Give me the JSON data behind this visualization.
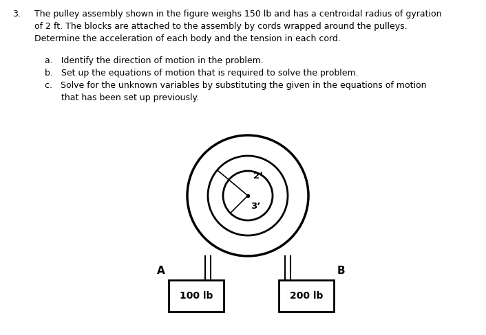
{
  "title_number": "3.",
  "title_text_line1": "The pulley assembly shown in the figure weighs 150 lb and has a centroidal radius of gyration",
  "title_text_line2": "of 2 ft. The blocks are attached to the assembly by cords wrapped around the pulleys.",
  "title_text_line3": "Determine the acceleration of each body and the tension in each cord.",
  "item_a": "a.   Identify the direction of motion in the problem.",
  "item_b": "b.   Set up the equations of motion that is required to solve the problem.",
  "item_c1": "c.   Solve for the unknown variables by substituting the given in the equations of motion",
  "item_c2": "      that has been set up previously.",
  "label_A": "A",
  "label_B": "B",
  "label_2ft": "2’",
  "label_3ft": "3’",
  "label_100lb": "100 lb",
  "label_200lb": "200 lb",
  "text_color": "#000000",
  "bg_color": "#ffffff",
  "line_color": "#000000",
  "line_width": 2.0,
  "font_size_text": 9.0,
  "font_size_label": 10.0,
  "font_size_diagram": 9.5
}
